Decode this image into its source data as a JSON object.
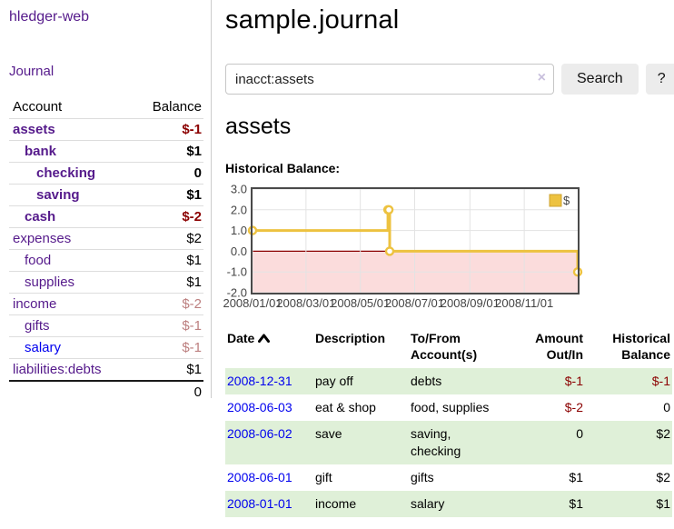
{
  "app": {
    "brand": "hledger-web",
    "nav": {
      "journal": "Journal"
    }
  },
  "sidebar": {
    "table": {
      "account_header": "Account",
      "balance_header": "Balance"
    },
    "accounts": [
      {
        "name": "assets",
        "balance": "$-1",
        "level": 1,
        "bold": true,
        "name_style": "purple",
        "balance_style": "neg-strong"
      },
      {
        "name": "bank",
        "balance": "$1",
        "level": 2,
        "bold": true,
        "name_style": "purple",
        "balance_style": "normal"
      },
      {
        "name": "checking",
        "balance": "0",
        "level": 3,
        "bold": true,
        "name_style": "purple",
        "balance_style": "normal"
      },
      {
        "name": "saving",
        "balance": "$1",
        "level": 3,
        "bold": true,
        "name_style": "purple",
        "balance_style": "normal"
      },
      {
        "name": "cash",
        "balance": "$-2",
        "level": 2,
        "bold": true,
        "name_style": "purple",
        "balance_style": "neg-strong"
      },
      {
        "name": "expenses",
        "balance": "$2",
        "level": 1,
        "bold": false,
        "name_style": "purple",
        "balance_style": "normal"
      },
      {
        "name": "food",
        "balance": "$1",
        "level": 2,
        "bold": false,
        "name_style": "purple",
        "balance_style": "normal"
      },
      {
        "name": "supplies",
        "balance": "$1",
        "level": 2,
        "bold": false,
        "name_style": "purple",
        "balance_style": "normal"
      },
      {
        "name": "income",
        "balance": "$-2",
        "level": 1,
        "bold": false,
        "name_style": "purple",
        "balance_style": "neg-soft"
      },
      {
        "name": "gifts",
        "balance": "$-1",
        "level": 2,
        "bold": false,
        "name_style": "purple",
        "balance_style": "neg-soft"
      },
      {
        "name": "salary",
        "balance": "$-1",
        "level": 2,
        "bold": false,
        "name_style": "blue",
        "balance_style": "neg-soft"
      },
      {
        "name": "liabilities:debts",
        "balance": "$1",
        "level": 1,
        "bold": false,
        "name_style": "purple",
        "balance_style": "normal"
      }
    ],
    "total": "0"
  },
  "main": {
    "title": "sample.journal",
    "search": {
      "value": "inacct:assets",
      "clear_icon": "×",
      "button": "Search",
      "help_button": "?"
    },
    "account_heading": "assets",
    "chart_label": "Historical Balance:"
  },
  "chart_data": {
    "type": "line",
    "step": true,
    "title": "Historical Balance:",
    "series": [
      {
        "name": "$",
        "color": "#edc240",
        "points": [
          {
            "date": "2008-01-01",
            "value": 1
          },
          {
            "date": "2008-06-01",
            "value": 2
          },
          {
            "date": "2008-06-02",
            "value": 2
          },
          {
            "date": "2008-06-03",
            "value": 0
          },
          {
            "date": "2008-12-31",
            "value": -1
          }
        ]
      }
    ],
    "x_range": [
      "2008-01-01",
      "2008-12-31"
    ],
    "x_ticks": [
      {
        "label": "2008/01/01",
        "date": "2008-01-01"
      },
      {
        "label": "2008/03/01",
        "date": "2008-03-01"
      },
      {
        "label": "2008/05/01",
        "date": "2008-05-01"
      },
      {
        "label": "2008/07/01",
        "date": "2008-07-01"
      },
      {
        "label": "2008/09/01",
        "date": "2008-09-01"
      },
      {
        "label": "2008/11/01",
        "date": "2008-11-01"
      }
    ],
    "y_ticks": [
      "3.0",
      "2.0",
      "1.0",
      "0.0",
      "-1.0",
      "-2.0"
    ],
    "ylim": [
      -2,
      3
    ],
    "grid": true,
    "legend": {
      "position": "ne",
      "label": "$"
    }
  },
  "register": {
    "headers": [
      {
        "label": "Date",
        "align": "left",
        "sort": "asc"
      },
      {
        "label": "Description",
        "align": "left"
      },
      {
        "label": "To/From Account(s)",
        "align": "left"
      },
      {
        "label": "Amount Out/In",
        "align": "right"
      },
      {
        "label": "Historical Balance",
        "align": "right"
      }
    ],
    "rows": [
      {
        "date": "2008-12-31",
        "description": "pay off",
        "accounts": "debts",
        "amount": "$-1",
        "amount_negative": true,
        "balance": "$-1",
        "balance_negative": true
      },
      {
        "date": "2008-06-03",
        "description": "eat & shop",
        "accounts": "food, supplies",
        "amount": "$-2",
        "amount_negative": true,
        "balance": "0",
        "balance_negative": false
      },
      {
        "date": "2008-06-02",
        "description": "save",
        "accounts": "saving,\nchecking",
        "amount": "0",
        "amount_negative": false,
        "balance": "$2",
        "balance_negative": false
      },
      {
        "date": "2008-06-01",
        "description": "gift",
        "accounts": "gifts",
        "amount": "$1",
        "amount_negative": false,
        "balance": "$2",
        "balance_negative": false
      },
      {
        "date": "2008-01-01",
        "description": "income",
        "accounts": "salary",
        "amount": "$1",
        "amount_negative": false,
        "balance": "$1",
        "balance_negative": false
      }
    ]
  },
  "colors": {
    "link_purple": "#551a8b",
    "link_blue": "#0000ee",
    "negative_strong": "#8b0000",
    "negative_soft": "#bc7f7f",
    "row_green": "#dff0d8",
    "chart_line": "#edc240",
    "chart_negative_fill": "#fbdcdc",
    "chart_zero_line": "#8b0000",
    "chart_border": "#4a4a4a",
    "chart_grid": "#e3e3e3"
  }
}
